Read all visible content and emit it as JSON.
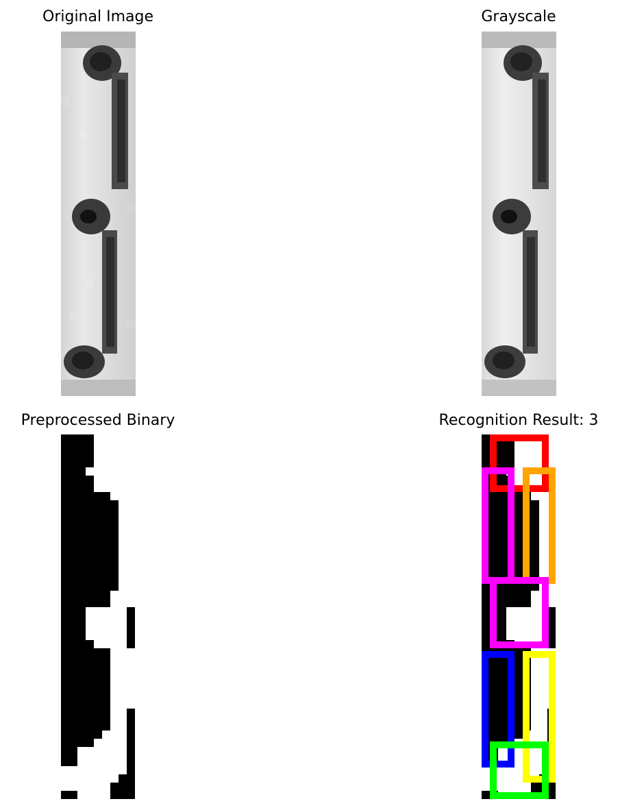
{
  "panels": {
    "original": {
      "title": "Original Image"
    },
    "grayscale": {
      "title": "Grayscale"
    },
    "binary": {
      "title": "Preprocessed Binary"
    },
    "result": {
      "title": "Recognition Result: 3"
    }
  },
  "box_colors": {
    "red": "#ff0000",
    "magenta": "#ff00ff",
    "orange": "#ffa500",
    "blue": "#0000ff",
    "yellow": "#ffff00",
    "green": "#00ff00"
  }
}
